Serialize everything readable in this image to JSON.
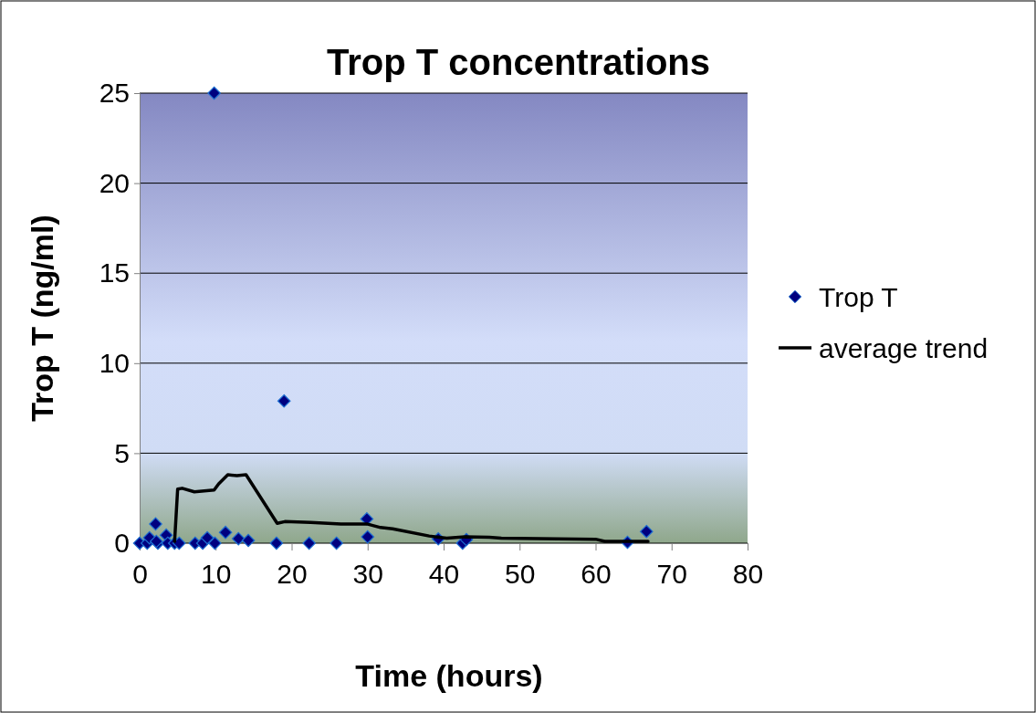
{
  "chart_data": {
    "type": "scatter",
    "title": "Trop T concentrations",
    "xlabel": "Time (hours)",
    "ylabel": "Trop T (ng/ml)",
    "xlim": [
      0,
      80
    ],
    "xticks": [
      0,
      10,
      20,
      30,
      40,
      50,
      60,
      70,
      80
    ],
    "ylim": [
      0,
      25
    ],
    "yticks": [
      0,
      5,
      10,
      15,
      20,
      25
    ],
    "grid": "y",
    "legend": "right",
    "series": [
      {
        "name": "Trop T",
        "marker": "diamond",
        "color": "#000080",
        "x": [
          0,
          1.0,
          1.3,
          2.1,
          2.4,
          2.2,
          3.5,
          3.7,
          4.6,
          5.2,
          7.3,
          8.3,
          8.9,
          9.8,
          9.9,
          11.3,
          13.0,
          14.3,
          18.0,
          19.0,
          22.3,
          25.9,
          29.9,
          30.0,
          39.3,
          42.5,
          43.0,
          64.2,
          66.7
        ],
        "values": [
          0,
          0,
          0.3,
          1.07,
          0,
          0.1,
          0.45,
          0,
          0,
          0,
          0,
          0,
          0.3,
          25,
          0,
          0.6,
          0.25,
          0.15,
          0,
          7.9,
          0,
          0,
          1.35,
          0.35,
          0.24,
          0,
          0.2,
          0.05,
          0.65
        ]
      },
      {
        "name": "average trend",
        "type": "line",
        "line_style": "solid",
        "color": "#000000",
        "x": [
          4.6,
          5.0,
          5.6,
          7.2,
          9.8,
          10.4,
          11.6,
          12.8,
          14.0,
          18.1,
          19.1,
          22.5,
          26.5,
          29.9,
          31.7,
          33.3,
          38.1,
          40.4,
          42.8,
          46.0,
          47.6,
          60.0,
          61.2,
          66.9
        ],
        "values": [
          0.1,
          3.0,
          3.05,
          2.85,
          2.95,
          3.3,
          3.8,
          3.75,
          3.8,
          1.1,
          1.2,
          1.15,
          1.07,
          1.07,
          0.87,
          0.8,
          0.4,
          0.28,
          0.35,
          0.33,
          0.28,
          0.22,
          0.1,
          0.1
        ]
      }
    ]
  }
}
